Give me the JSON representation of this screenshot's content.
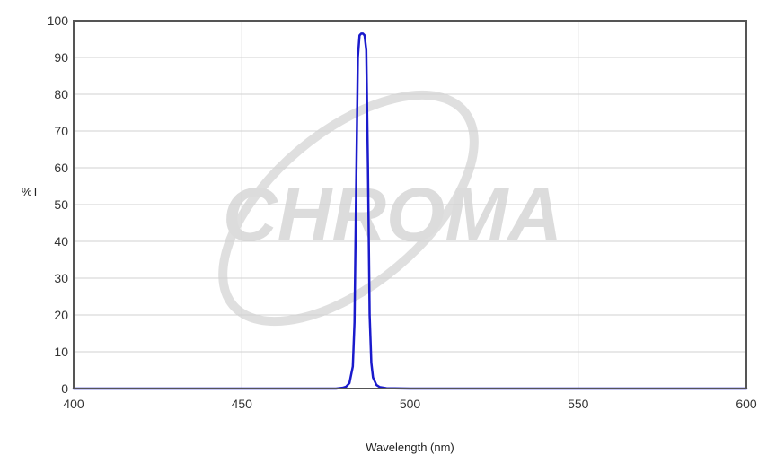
{
  "watermark": {
    "text": "CHROMA",
    "color": "#d9d9d9"
  },
  "chart_data": {
    "type": "line",
    "title": "",
    "xlabel": "Wavelength (nm)",
    "ylabel": "%T",
    "xlim": [
      400,
      600
    ],
    "ylim": [
      0,
      100
    ],
    "xticks": [
      400,
      450,
      500,
      550,
      600
    ],
    "yticks": [
      0,
      10,
      20,
      30,
      40,
      50,
      60,
      70,
      80,
      90,
      100
    ],
    "grid": true,
    "legend": "none",
    "line_color": "#1a1acc",
    "series": [
      {
        "x": [
          400,
          450,
          478,
          480,
          481,
          482,
          483,
          483.5,
          484,
          484.5,
          485,
          485.5,
          486,
          486.5,
          487,
          487.5,
          488,
          488.5,
          489,
          490,
          491,
          493,
          500,
          550,
          600
        ],
        "values": [
          0,
          0,
          0,
          0.2,
          0.5,
          1.5,
          6,
          18,
          55,
          90,
          96,
          96.5,
          96.5,
          96,
          92,
          60,
          20,
          7,
          3,
          1,
          0.4,
          0.1,
          0,
          0,
          0
        ]
      }
    ]
  }
}
